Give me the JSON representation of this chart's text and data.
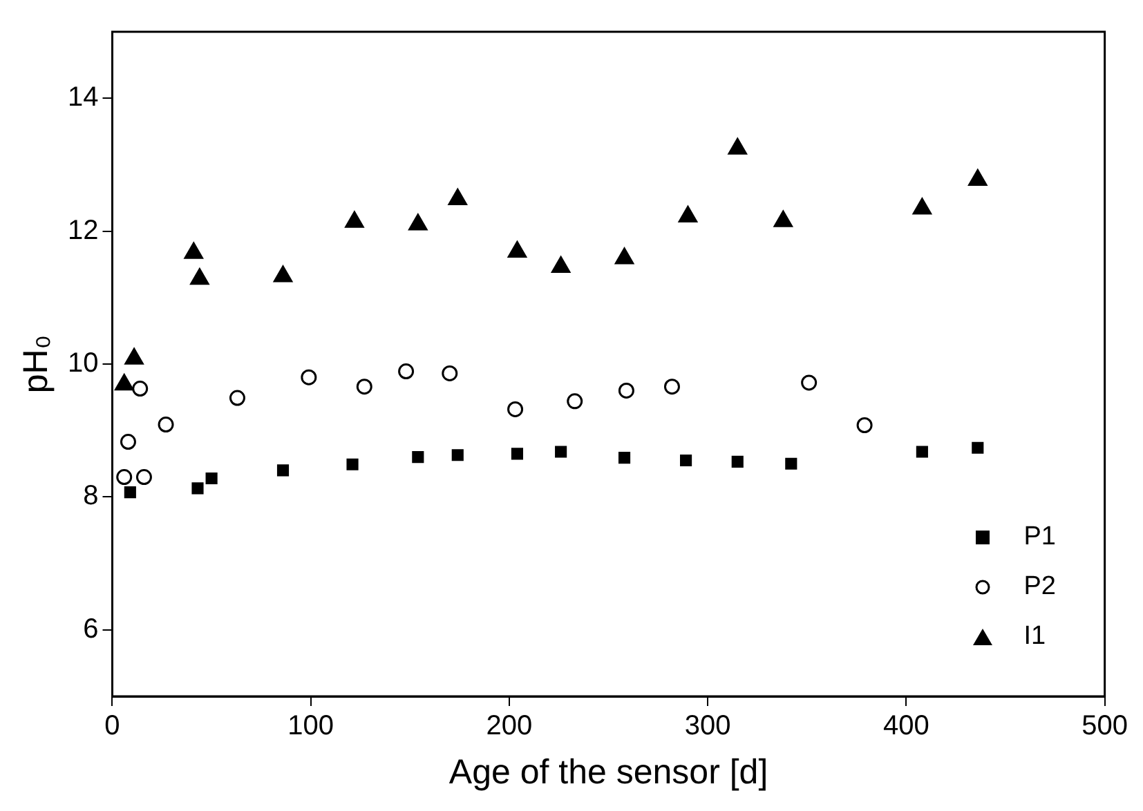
{
  "chart_data": {
    "type": "scatter",
    "xlabel": "Age of the sensor [d]",
    "ylabel": "pH₀",
    "xlim": [
      0,
      500
    ],
    "xticks": [
      0,
      100,
      200,
      300,
      400,
      500
    ],
    "ylim": [
      5,
      15
    ],
    "yticks": [
      6,
      8,
      10,
      12,
      14
    ],
    "grid": false,
    "legend": "bottom right",
    "series": [
      {
        "name": "P1",
        "color": "#000000",
        "marker": "square",
        "x": [
          9,
          43,
          50,
          86,
          121,
          154,
          174,
          204,
          226,
          258,
          289,
          315,
          342,
          408,
          436
        ],
        "values": [
          8.07,
          8.13,
          8.28,
          8.4,
          8.49,
          8.6,
          8.63,
          8.65,
          8.68,
          8.59,
          8.55,
          8.53,
          8.5,
          8.68,
          8.74
        ]
      },
      {
        "name": "P2",
        "color": "#000000",
        "marker": "circle",
        "x": [
          6,
          8,
          14,
          16,
          27,
          63,
          99,
          127,
          148,
          170,
          203,
          233,
          259,
          282,
          351,
          379
        ],
        "values": [
          8.3,
          8.83,
          9.63,
          8.3,
          9.09,
          9.49,
          9.8,
          9.66,
          9.89,
          9.86,
          9.32,
          9.44,
          9.6,
          9.66,
          9.72,
          9.08
        ]
      },
      {
        "name": "I1",
        "color": "#000000",
        "marker": "triangle",
        "x": [
          6,
          11,
          41,
          44,
          86,
          122,
          154,
          174,
          204,
          226,
          258,
          290,
          315,
          338,
          408,
          436
        ],
        "values": [
          9.69,
          10.08,
          11.67,
          11.28,
          11.32,
          12.14,
          12.1,
          12.48,
          11.69,
          11.46,
          11.59,
          12.22,
          13.24,
          12.15,
          12.34,
          12.77
        ]
      }
    ]
  }
}
